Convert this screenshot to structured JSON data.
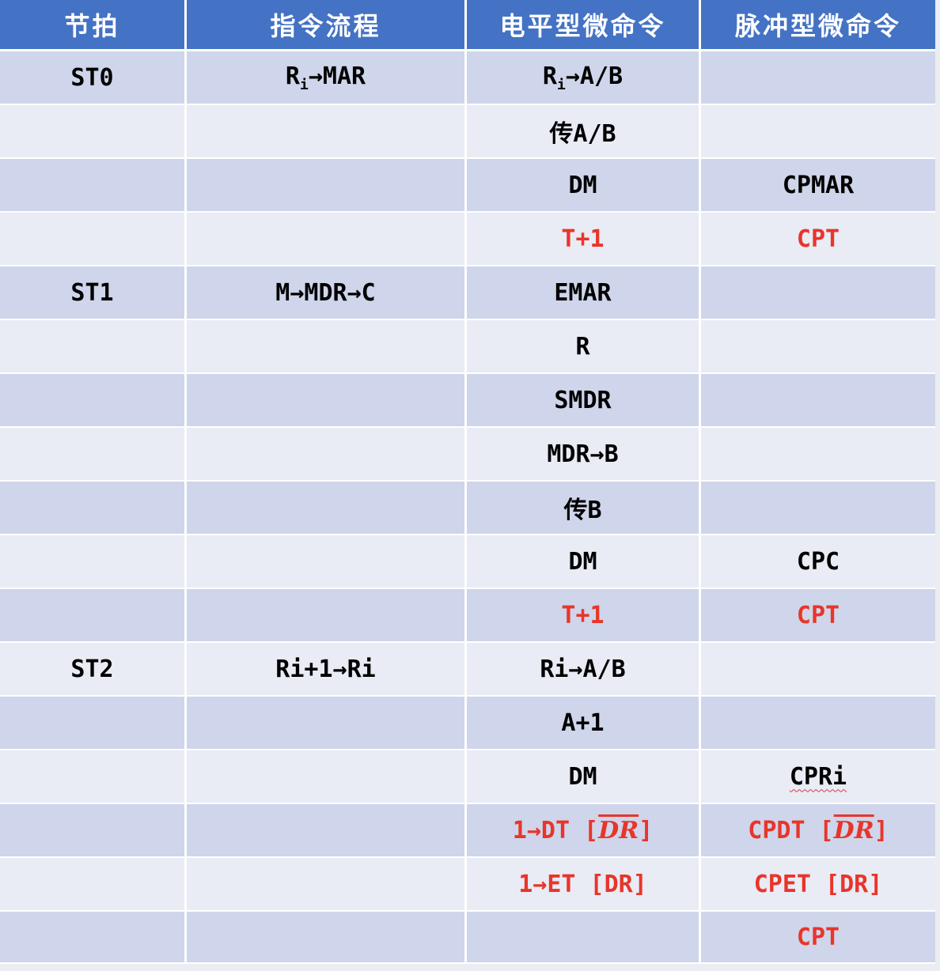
{
  "table": {
    "headers": [
      "节拍",
      "指令流程",
      "电平型微命令",
      "脉冲型微命令"
    ],
    "rows": [
      {
        "beat": "ST0",
        "flow_pre": "R",
        "flow_sub": "i",
        "flow_post": "→MAR",
        "level_pre": "R",
        "level_sub": "i",
        "level_post": "→A/B",
        "pulse": ""
      },
      {
        "beat": "",
        "flow": "",
        "level": "传A/B",
        "pulse": ""
      },
      {
        "beat": "",
        "flow": "",
        "level": "DM",
        "pulse": "CPMAR"
      },
      {
        "beat": "",
        "flow": "",
        "level": "T+1",
        "pulse": "CPT"
      },
      {
        "beat": "ST1",
        "flow": "M→MDR→C",
        "level": "EMAR",
        "pulse": ""
      },
      {
        "beat": "",
        "flow": "",
        "level": "R",
        "pulse": ""
      },
      {
        "beat": "",
        "flow": "",
        "level": "SMDR",
        "pulse": ""
      },
      {
        "beat": "",
        "flow": "",
        "level": "MDR→B",
        "pulse": ""
      },
      {
        "beat": "",
        "flow": "",
        "level": "传B",
        "pulse": ""
      },
      {
        "beat": "",
        "flow": "",
        "level": "DM",
        "pulse": "CPC"
      },
      {
        "beat": "",
        "flow": "",
        "level": "T+1",
        "pulse": "CPT"
      },
      {
        "beat": "ST2",
        "flow": "Ri+1→Ri",
        "level": "Ri→A/B",
        "pulse": ""
      },
      {
        "beat": "",
        "flow": "",
        "level": "A+1",
        "pulse": ""
      },
      {
        "beat": "",
        "flow": "",
        "level": "DM",
        "pulse": "CPRi"
      },
      {
        "beat": "",
        "flow": "",
        "level_pre": "1→DT [",
        "level_over": "DR",
        "level_post": "]",
        "pulse_pre": "CPDT [",
        "pulse_over": "DR",
        "pulse_post": "]"
      },
      {
        "beat": "",
        "flow": "",
        "level": "1→ET [DR]",
        "pulse": "CPET [DR]"
      },
      {
        "beat": "",
        "flow": "",
        "level": "",
        "pulse": "CPT"
      }
    ]
  },
  "colors": {
    "header_bg": "#4472c4",
    "row_odd": "#cfd5ea",
    "row_even": "#e9ebf5",
    "highlight_red": "#e8352a"
  }
}
